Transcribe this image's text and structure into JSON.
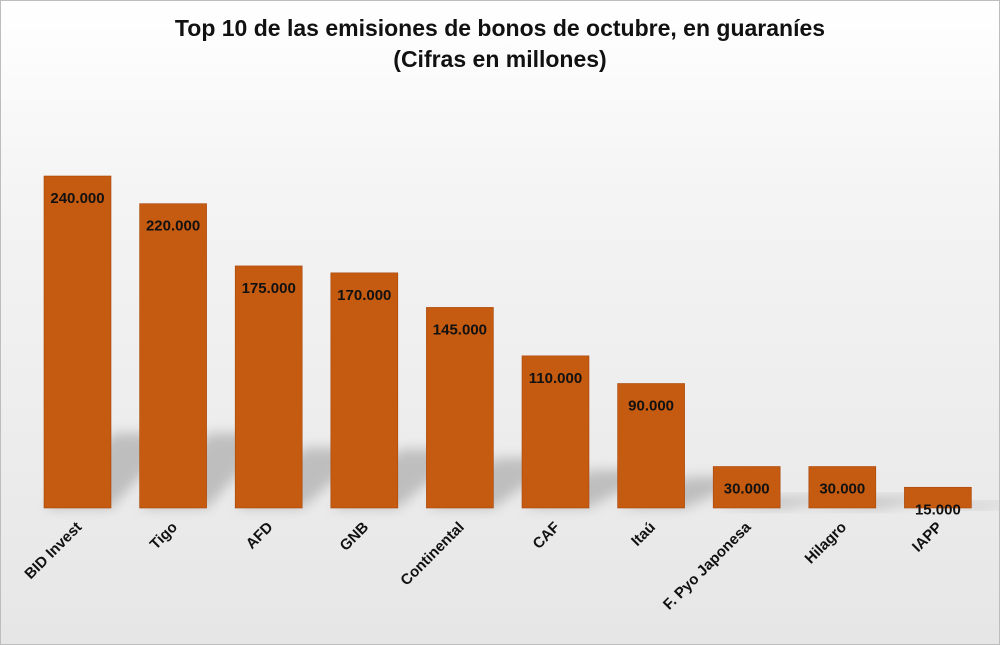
{
  "chart_data": {
    "type": "bar",
    "title": "Top 10 de las emisiones de bonos de octubre, en guaraníes",
    "subtitle": "(Cifras en millones)",
    "categories": [
      "BID Invest",
      "Tigo",
      "AFD",
      "GNB",
      "Continental",
      "CAF",
      "Itaú",
      "F. Pyo Japonesa",
      "Hilagro",
      "IAPP"
    ],
    "values": [
      240000,
      220000,
      175000,
      170000,
      145000,
      110000,
      90000,
      30000,
      30000,
      15000
    ],
    "value_labels": [
      "240.000",
      "220.000",
      "175.000",
      "170.000",
      "145.000",
      "110.000",
      "90.000",
      "30.000",
      "30.000",
      "15.000"
    ],
    "ylim": [
      0,
      240000
    ],
    "grid": false,
    "legend": "none",
    "colors": {
      "bar": "#c55a11",
      "bar_edge": "#a9480c",
      "shadow": "#9a9a9a"
    }
  }
}
